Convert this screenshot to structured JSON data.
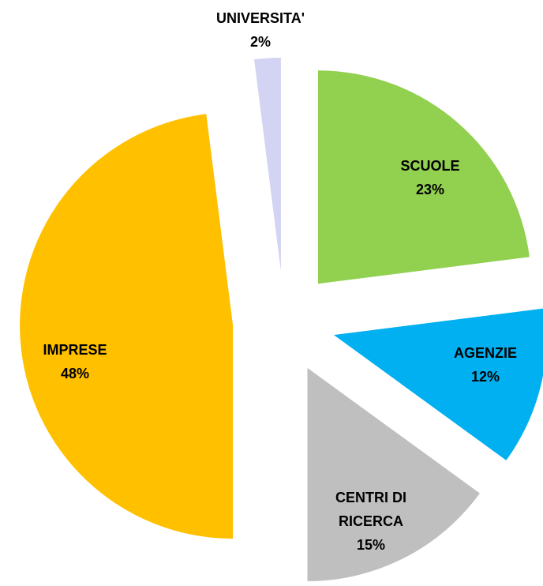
{
  "chart_data": {
    "type": "pie",
    "categories": [
      "SCUOLE",
      "AGENZIE",
      "CENTRI DI RICERCA",
      "IMPRESE",
      "UNIVERSITA'"
    ],
    "values": [
      23,
      12,
      15,
      48,
      2
    ],
    "value_labels": [
      "23%",
      "12%",
      "15%",
      "48%",
      "2%"
    ],
    "colors": [
      "#92d050",
      "#00b0f0",
      "#bfbfbf",
      "#ffc000",
      "#d3d3f3"
    ],
    "exploded": true
  }
}
